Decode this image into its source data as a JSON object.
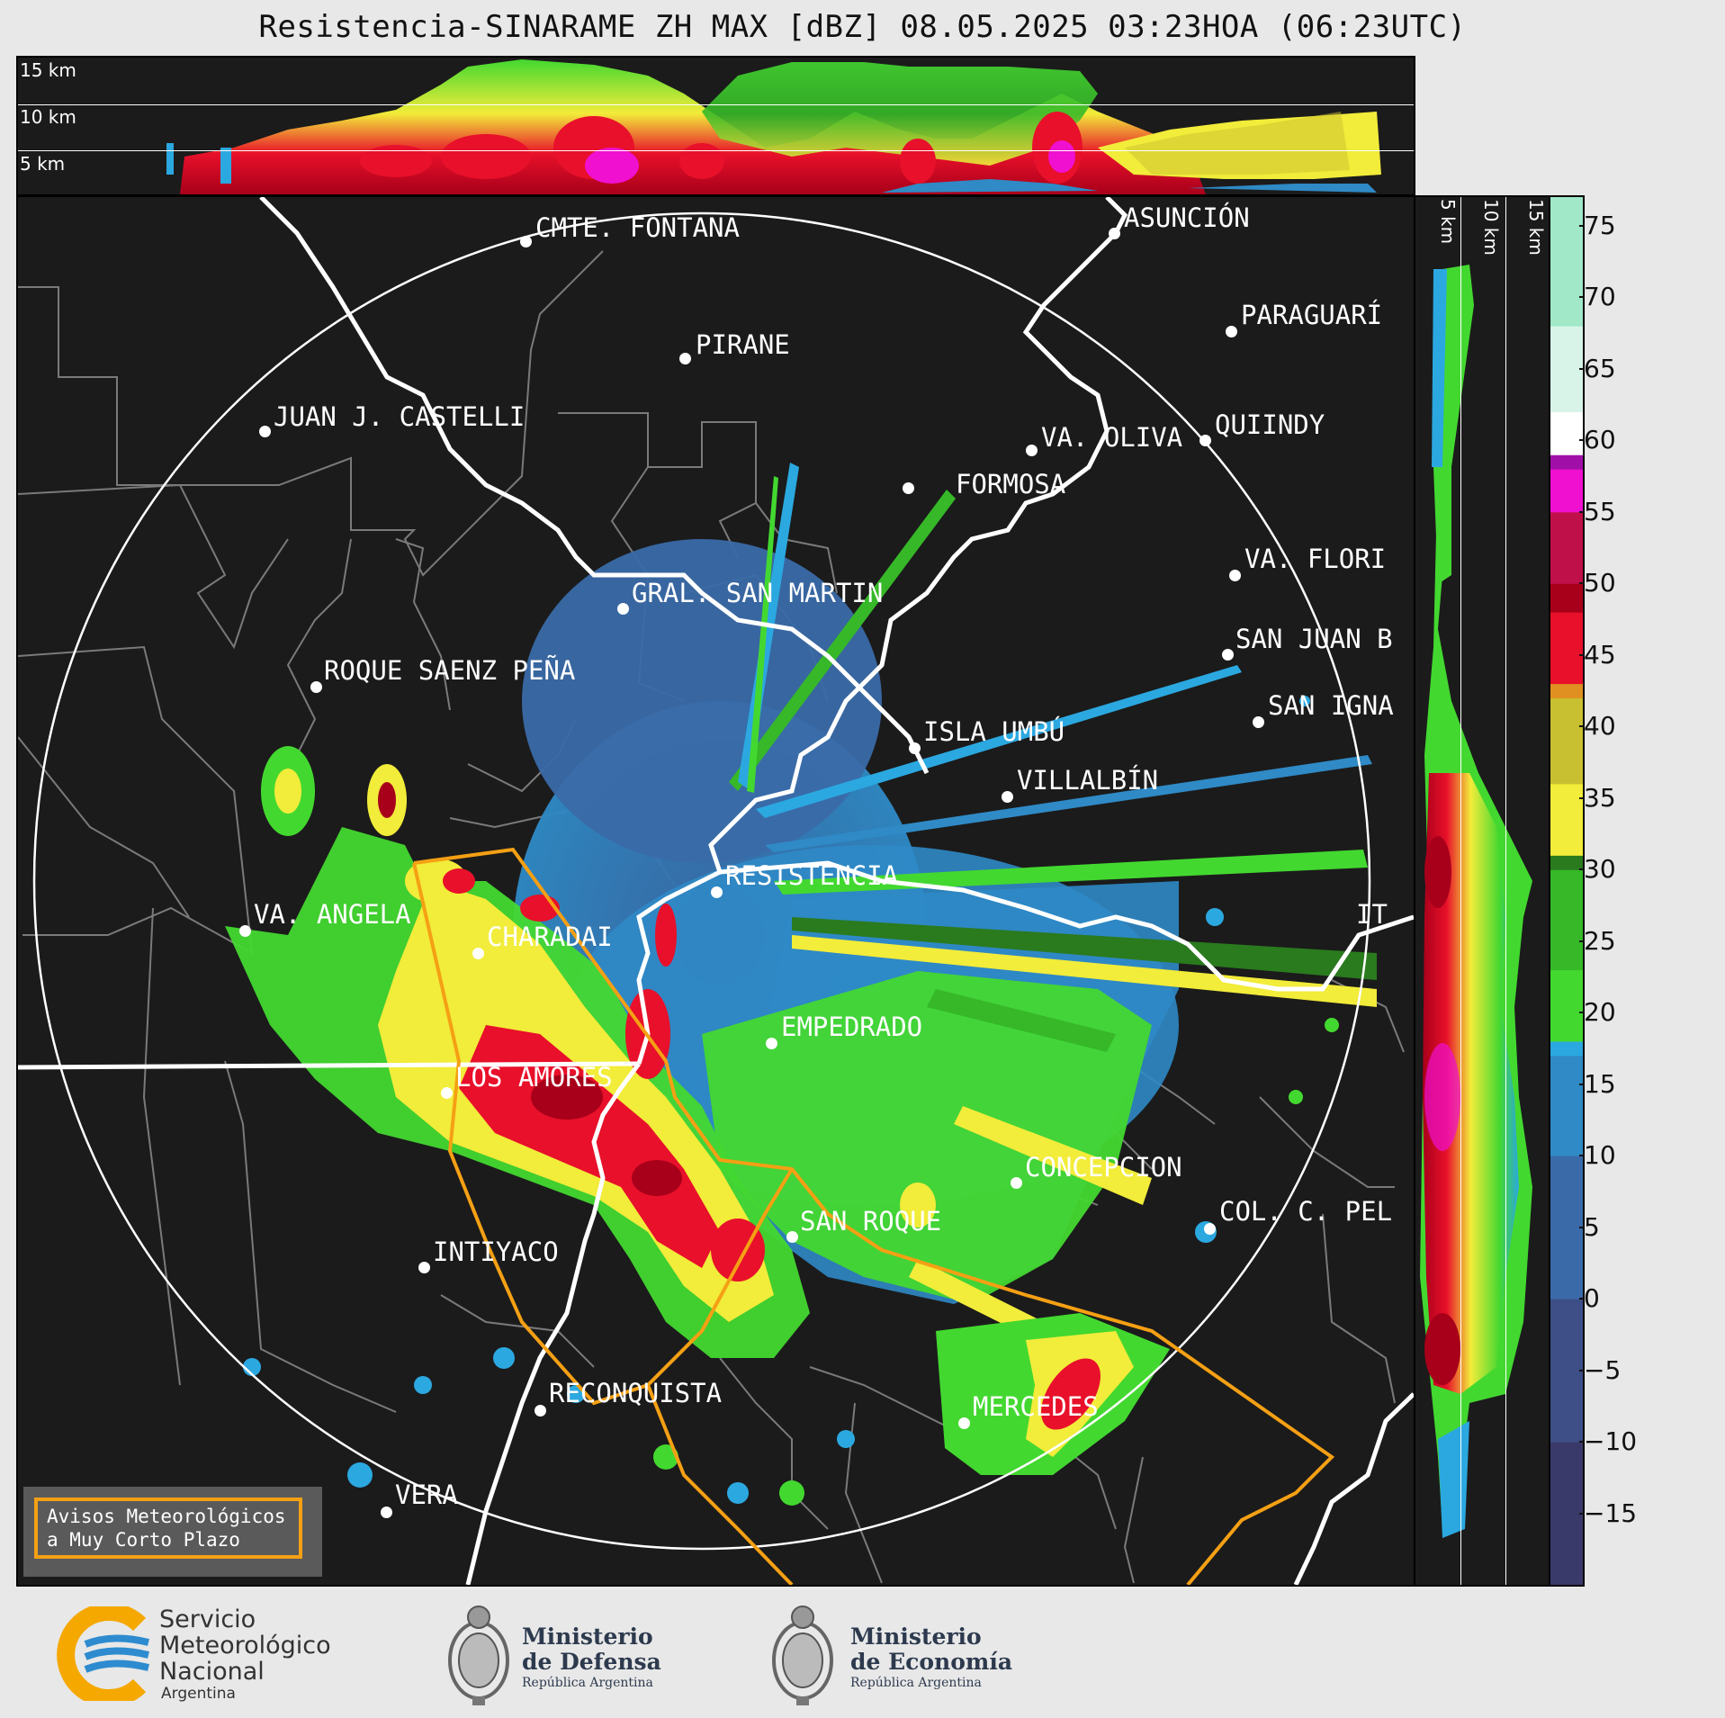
{
  "title": "Resistencia-SINARAME ZH MAX [dBZ] 08.05.2025 03:23HOA (06:23UTC)",
  "top_altitudes": [
    "15 km",
    "10 km",
    "5 km"
  ],
  "side_altitudes": [
    "5 km",
    "10 km",
    "15 km"
  ],
  "colorbar": {
    "unit": "dBZ",
    "ticks": [
      "75",
      "70",
      "65",
      "60",
      "55",
      "50",
      "45",
      "40",
      "35",
      "30",
      "25",
      "20",
      "15",
      "10",
      "5",
      "0",
      "−5",
      "−10",
      "−15"
    ],
    "range": [
      -20,
      77
    ],
    "stops": [
      {
        "v": -20,
        "c": "#3a3a6a"
      },
      {
        "v": -10,
        "c": "#3e4e86"
      },
      {
        "v": 0,
        "c": "#3a6aa8"
      },
      {
        "v": 10,
        "c": "#2f8ac6"
      },
      {
        "v": 17,
        "c": "#2ba8e0"
      },
      {
        "v": 18,
        "c": "#43d830"
      },
      {
        "v": 23,
        "c": "#36b828"
      },
      {
        "v": 30,
        "c": "#2a7a1e"
      },
      {
        "v": 30.1,
        "c": "#f2ec3a"
      },
      {
        "v": 36,
        "c": "#c8c030"
      },
      {
        "v": 42,
        "c": "#e09020"
      },
      {
        "v": 42.1,
        "c": "#e8102a"
      },
      {
        "v": 48,
        "c": "#a8001a"
      },
      {
        "v": 50,
        "c": "#c0104a"
      },
      {
        "v": 55,
        "c": "#f010d0"
      },
      {
        "v": 58,
        "c": "#a010a8"
      },
      {
        "v": 59,
        "c": "#ffffff"
      },
      {
        "v": 62,
        "c": "#d8f4e8"
      },
      {
        "v": 68,
        "c": "#a0e8c8"
      },
      {
        "v": 77,
        "c": "#80d8b8"
      }
    ]
  },
  "colors": {
    "range_ring": "#ffffff",
    "border": "#ffffff",
    "warning_polygon": "#f5a014",
    "background": "#1b1b1b"
  },
  "cities": [
    {
      "name": "CMTE. FONTANA",
      "id": "cmte-fontana"
    },
    {
      "name": "ASUNCIÓN",
      "id": "asuncion"
    },
    {
      "name": "PIRANE",
      "id": "pirane"
    },
    {
      "name": "PARAGUARÍ",
      "id": "paraguari"
    },
    {
      "name": "JUAN J. CASTELLI",
      "id": "juan-j-castelli"
    },
    {
      "name": "VA. OLIVA",
      "id": "va-oliva"
    },
    {
      "name": "QUIINDY",
      "id": "quiindy"
    },
    {
      "name": "FORMOSA",
      "id": "formosa"
    },
    {
      "name": "VA. FLORI",
      "id": "va-florida"
    },
    {
      "name": "GRAL. SAN MARTIN",
      "id": "gral-san-martin"
    },
    {
      "name": "SAN JUAN B",
      "id": "san-juan-b"
    },
    {
      "name": "ROQUE SAENZ PEÑA",
      "id": "roque-saenz-pena"
    },
    {
      "name": "SAN IGNA",
      "id": "san-ignacio"
    },
    {
      "name": "ISLA UMBÚ",
      "id": "isla-umbu"
    },
    {
      "name": "VILLALBÍN",
      "id": "villalbin"
    },
    {
      "name": "RESISTENCIA",
      "id": "resistencia"
    },
    {
      "name": "IT",
      "id": "ituzaingo"
    },
    {
      "name": "VA. ANGELA",
      "id": "va-angela"
    },
    {
      "name": "CHARADAI",
      "id": "charadai"
    },
    {
      "name": "EMPEDRADO",
      "id": "empedrado"
    },
    {
      "name": "LOS AMORES",
      "id": "los-amores"
    },
    {
      "name": "CONCEPCION",
      "id": "concepcion"
    },
    {
      "name": "SAN ROQUE",
      "id": "san-roque"
    },
    {
      "name": "COL. C. PEL",
      "id": "col-c-pel"
    },
    {
      "name": "INTIYACO",
      "id": "intiyaco"
    },
    {
      "name": "MERCEDES",
      "id": "mercedes"
    },
    {
      "name": "RECONQUISTA",
      "id": "reconquista"
    },
    {
      "name": "VERA",
      "id": "vera"
    }
  ],
  "warning_box": {
    "line1": "Avisos Meteorológicos",
    "line2": "a Muy Corto Plazo"
  },
  "logos": {
    "smn": {
      "line1": "Servicio",
      "line2": "Meteorológico",
      "line3": "Nacional",
      "line4": "Argentina"
    },
    "defensa": {
      "line1": "Ministerio",
      "line2": "de Defensa",
      "line3": "República Argentina"
    },
    "economia": {
      "line1": "Ministerio",
      "line2": "de Economía",
      "line3": "República Argentina"
    }
  }
}
